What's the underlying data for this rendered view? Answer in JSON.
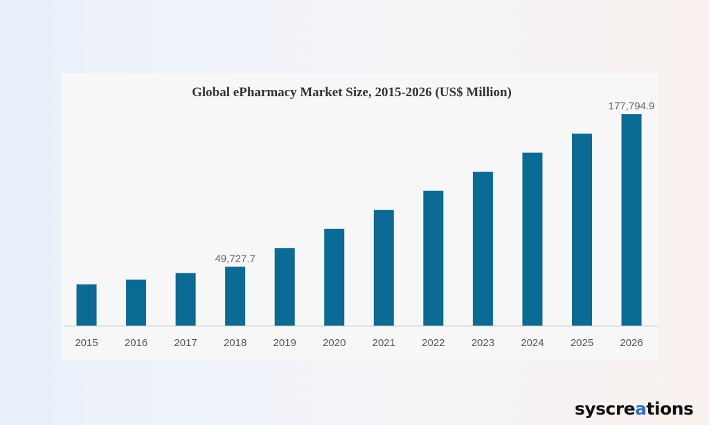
{
  "chart_data": {
    "type": "bar",
    "title": "Global ePharmacy Market Size, 2015-2026 (US$ Million)",
    "categories": [
      "2015",
      "2016",
      "2017",
      "2018",
      "2019",
      "2020",
      "2021",
      "2022",
      "2023",
      "2024",
      "2025",
      "2026"
    ],
    "values": [
      35000,
      39000,
      44500,
      49727.7,
      65500,
      81500,
      97500,
      113500,
      129500,
      145500,
      161500,
      177794.9
    ],
    "data_labels": [
      {
        "index": 3,
        "text": "49,727.7"
      },
      {
        "index": 11,
        "text": "177,794.9"
      }
    ],
    "xlabel": "",
    "ylabel": "",
    "ylim": [
      0,
      190000
    ],
    "bar_color": "#0a6b94",
    "grid": false
  },
  "brand": {
    "prefix": "syscre",
    "accent": "a",
    "suffix": "tions"
  }
}
